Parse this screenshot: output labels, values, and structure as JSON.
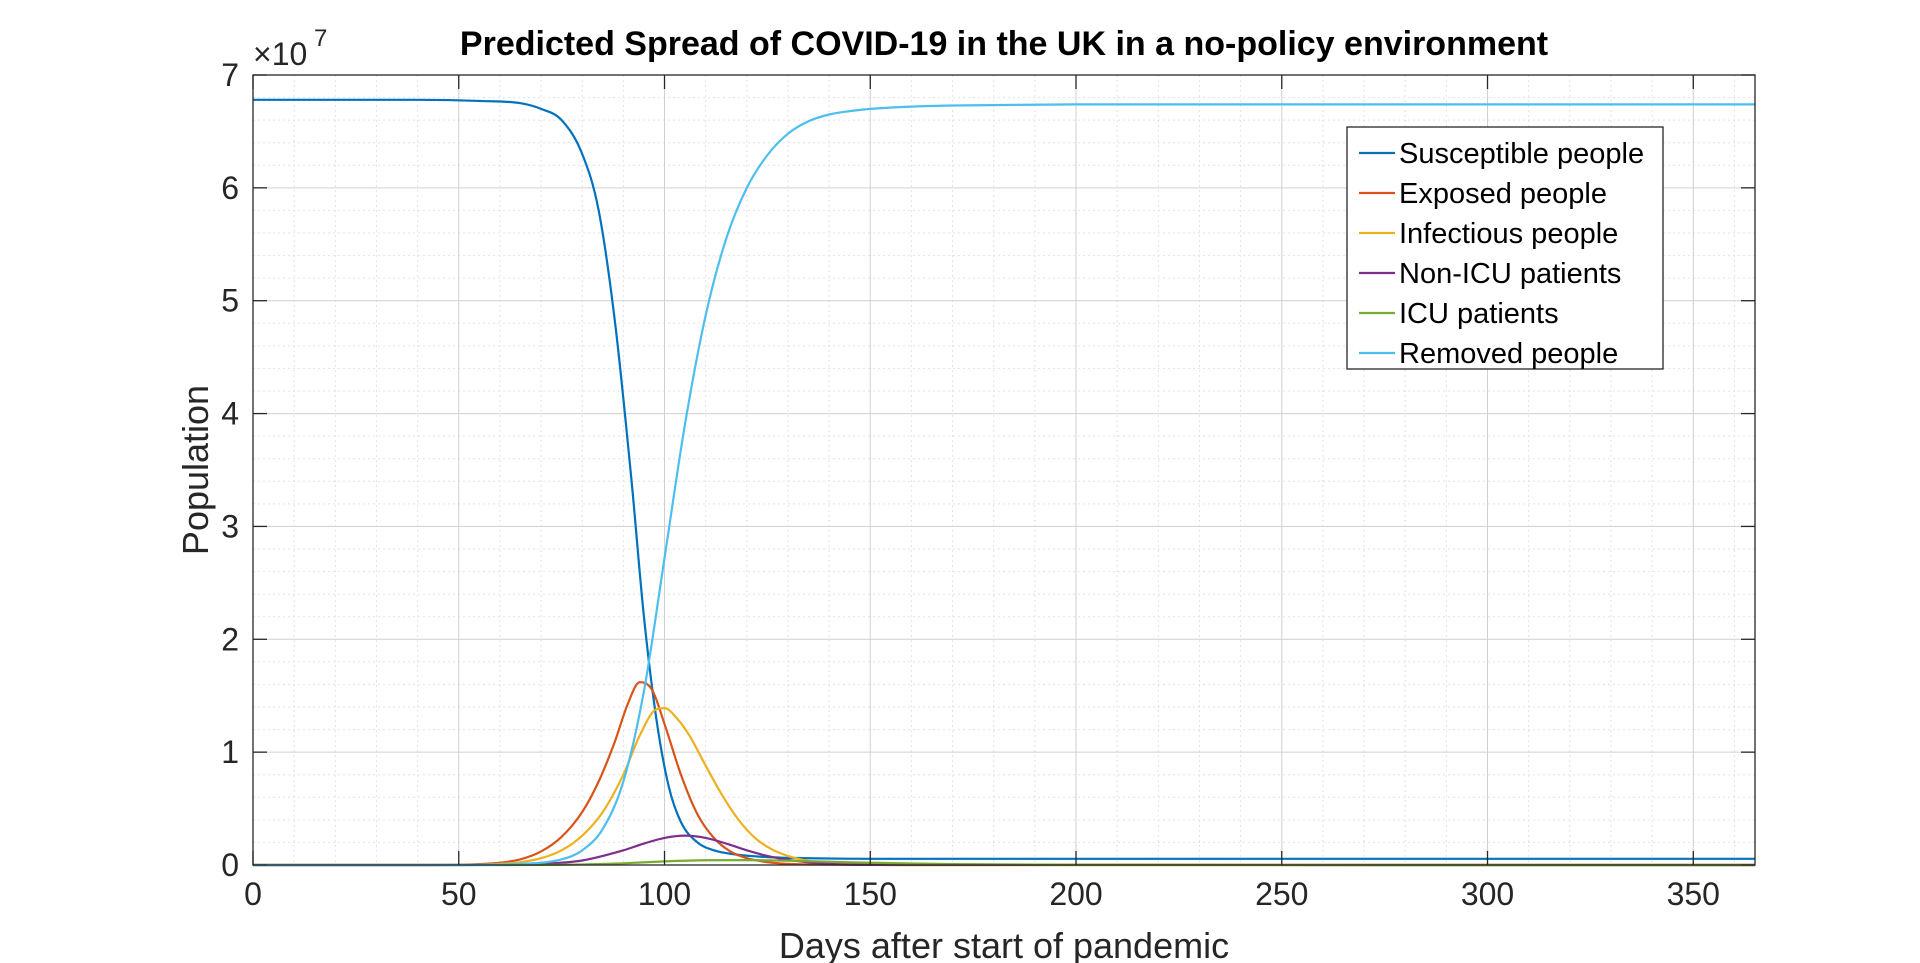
{
  "chart_data": {
    "type": "line",
    "title": "Predicted Spread of COVID-19 in the UK in a no-policy environment",
    "xlabel": "Days after start of pandemic",
    "ylabel": "Population",
    "xlim": [
      0,
      365
    ],
    "ylim": [
      0,
      70000000
    ],
    "x_ticks": [
      0,
      50,
      100,
      150,
      200,
      250,
      300,
      350
    ],
    "y_ticks": [
      0,
      10000000,
      20000000,
      30000000,
      40000000,
      50000000,
      60000000,
      70000000
    ],
    "y_tick_labels": [
      "0",
      "1",
      "2",
      "3",
      "4",
      "5",
      "6",
      "7"
    ],
    "x_tick_labels": [
      "0",
      "50",
      "100",
      "150",
      "200",
      "250",
      "300",
      "350"
    ],
    "y_exponent_base": "×10",
    "y_exponent_power": "7",
    "grid": true,
    "minor_grid": true,
    "legend_position": "top-right",
    "series": [
      {
        "name": "Susceptible people",
        "color": "#0072BD",
        "x": [
          0,
          40,
          55,
          65,
          70,
          75,
          80,
          84,
          88,
          92,
          95,
          98,
          101,
          104,
          108,
          112,
          118,
          125,
          135,
          150,
          200,
          365
        ],
        "values": [
          67800000,
          67800000,
          67700000,
          67500000,
          67000000,
          66000000,
          63000000,
          58000000,
          48000000,
          34000000,
          22000000,
          13000000,
          7000000,
          3800000,
          2000000,
          1300000,
          900000,
          700000,
          600000,
          550000,
          550000,
          550000
        ]
      },
      {
        "name": "Exposed people",
        "color": "#D95319",
        "x": [
          0,
          40,
          50,
          60,
          65,
          70,
          75,
          80,
          84,
          88,
          91,
          94,
          97,
          100,
          104,
          108,
          112,
          116,
          120,
          125,
          130,
          140,
          160,
          365
        ],
        "values": [
          0,
          0,
          20000,
          200000,
          500000,
          1200000,
          2500000,
          4700000,
          7400000,
          11000000,
          14200000,
          16200000,
          15500000,
          12500000,
          8000000,
          4500000,
          2400000,
          1200000,
          600000,
          250000,
          100000,
          30000,
          0,
          0
        ]
      },
      {
        "name": "Infectious people",
        "color": "#EDB120",
        "x": [
          0,
          40,
          50,
          60,
          65,
          70,
          75,
          80,
          85,
          90,
          94,
          98,
          100,
          103,
          106,
          110,
          114,
          118,
          122,
          126,
          130,
          135,
          140,
          150,
          165,
          365
        ],
        "values": [
          0,
          0,
          10000,
          100000,
          250000,
          600000,
          1300000,
          2600000,
          4700000,
          8000000,
          11500000,
          13800000,
          13900000,
          13000000,
          11500000,
          8800000,
          6200000,
          4000000,
          2400000,
          1400000,
          800000,
          350000,
          150000,
          30000,
          0,
          0
        ]
      },
      {
        "name": "Non-ICU patients",
        "color": "#7E2F8E",
        "x": [
          0,
          50,
          60,
          70,
          80,
          90,
          95,
          100,
          105,
          110,
          115,
          120,
          125,
          130,
          140,
          150,
          365
        ],
        "values": [
          0,
          0,
          20000,
          100000,
          400000,
          1300000,
          1900000,
          2400000,
          2600000,
          2400000,
          1900000,
          1300000,
          800000,
          450000,
          100000,
          20000,
          0
        ]
      },
      {
        "name": "ICU patients",
        "color": "#77AC30",
        "x": [
          0,
          60,
          80,
          90,
          100,
          110,
          120,
          130,
          140,
          150,
          170,
          200,
          365
        ],
        "values": [
          0,
          0,
          50000,
          150000,
          320000,
          420000,
          430000,
          380000,
          290000,
          200000,
          80000,
          10000,
          0
        ]
      },
      {
        "name": "Removed people",
        "color": "#4DBEEE",
        "x": [
          0,
          50,
          65,
          75,
          80,
          85,
          90,
          95,
          100,
          105,
          110,
          115,
          120,
          125,
          130,
          135,
          140,
          145,
          150,
          160,
          170,
          200,
          365
        ],
        "values": [
          0,
          0,
          100000,
          500000,
          1300000,
          3200000,
          7400000,
          15400000,
          27200000,
          39100000,
          48700000,
          55500000,
          60000000,
          62900000,
          64800000,
          65900000,
          66500000,
          66800000,
          67000000,
          67200000,
          67300000,
          67400000,
          67400000
        ]
      }
    ]
  }
}
